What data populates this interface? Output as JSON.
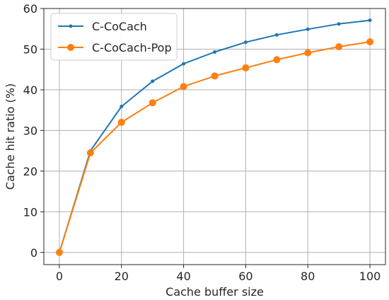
{
  "chart_data": {
    "type": "line",
    "xlabel": "Cache buffer size",
    "ylabel": "Cache hit ratio (%)",
    "xlim": [
      -5,
      105
    ],
    "ylim": [
      -3,
      60
    ],
    "xticks": [
      0,
      20,
      40,
      60,
      80,
      100
    ],
    "yticks": [
      0,
      10,
      20,
      30,
      40,
      50,
      60
    ],
    "grid": true,
    "legend_position": "top-left",
    "x": [
      0,
      10,
      20,
      30,
      40,
      50,
      60,
      70,
      80,
      90,
      100
    ],
    "series": [
      {
        "name": "C-CoCach",
        "color": "#1f77b4",
        "marker": "small-dot",
        "values": [
          0,
          25.0,
          35.9,
          42.1,
          46.4,
          49.3,
          51.7,
          53.5,
          54.9,
          56.2,
          57.1
        ]
      },
      {
        "name": "C-CoCach-Pop",
        "color": "#ff7f0e",
        "marker": "large-dot",
        "values": [
          0,
          24.5,
          32.0,
          36.8,
          40.8,
          43.4,
          45.4,
          47.4,
          49.1,
          50.6,
          51.8
        ]
      }
    ]
  }
}
